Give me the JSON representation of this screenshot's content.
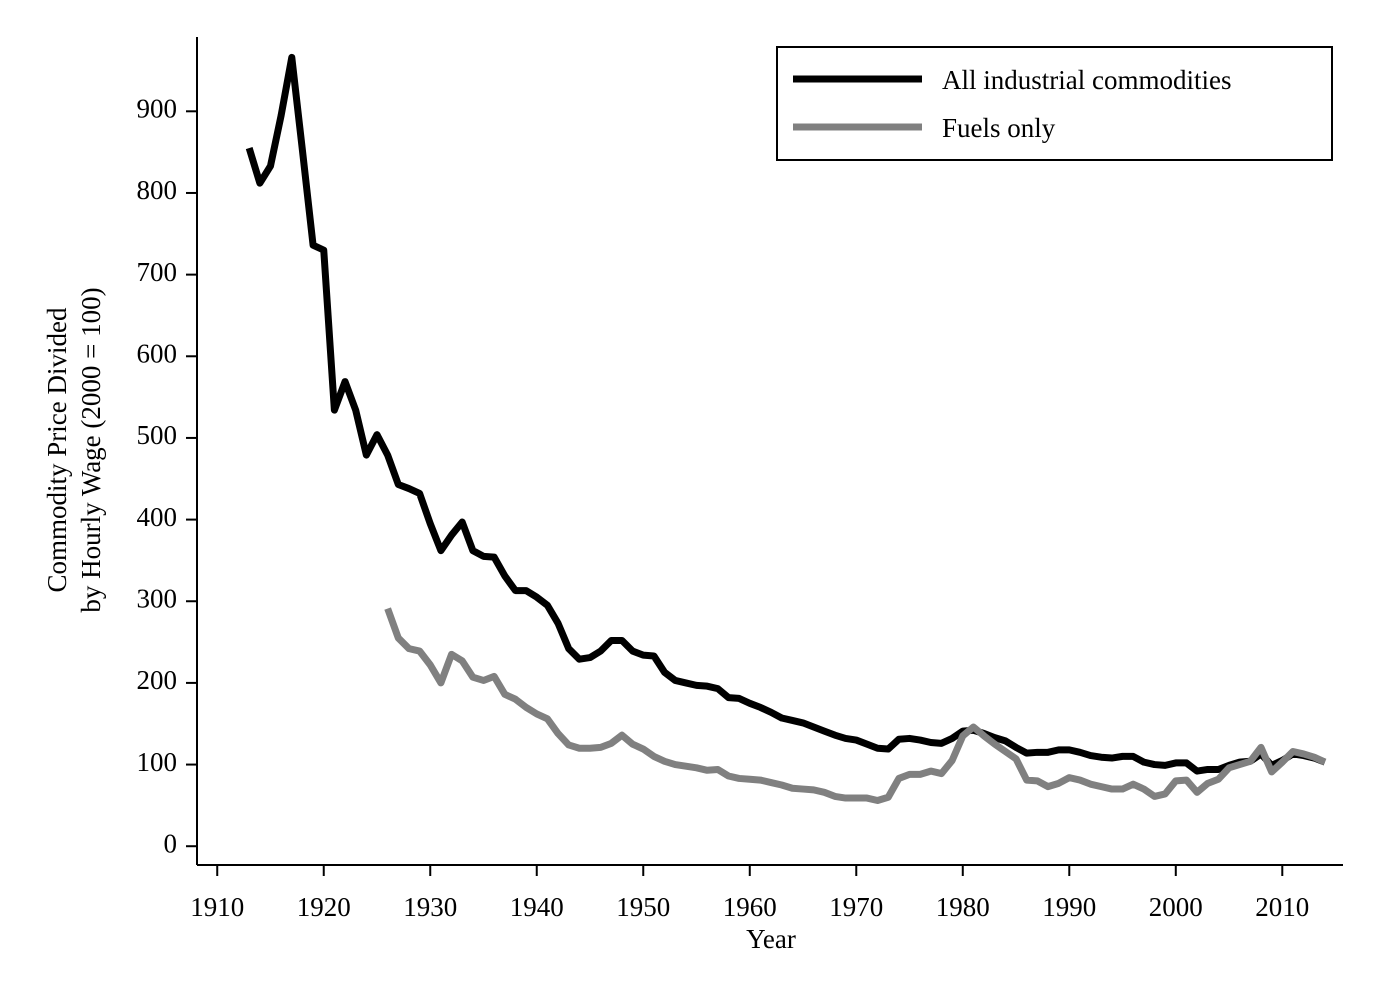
{
  "chart_data": {
    "type": "line",
    "y_label": [
      "Commodity Price Divided",
      "by Hourly Wage (2000 = 100)"
    ],
    "x_label": "Year",
    "x": [
      1913,
      1914,
      1915,
      1916,
      1917,
      1918,
      1919,
      1920,
      1921,
      1922,
      1923,
      1924,
      1925,
      1926,
      1927,
      1928,
      1929,
      1930,
      1931,
      1932,
      1933,
      1934,
      1935,
      1936,
      1937,
      1938,
      1939,
      1940,
      1941,
      1942,
      1943,
      1944,
      1945,
      1946,
      1947,
      1948,
      1949,
      1950,
      1951,
      1952,
      1953,
      1954,
      1955,
      1956,
      1957,
      1958,
      1959,
      1960,
      1961,
      1962,
      1963,
      1964,
      1965,
      1966,
      1967,
      1968,
      1969,
      1970,
      1971,
      1972,
      1973,
      1974,
      1975,
      1976,
      1977,
      1978,
      1979,
      1980,
      1981,
      1982,
      1983,
      1984,
      1985,
      1986,
      1987,
      1988,
      1989,
      1990,
      1991,
      1992,
      1993,
      1994,
      1995,
      1996,
      1997,
      1998,
      1999,
      2000,
      2001,
      2002,
      2003,
      2004,
      2005,
      2006,
      2007,
      2008,
      2009,
      2010,
      2011,
      2012,
      2013,
      2014
    ],
    "series": [
      {
        "name": "All industrial commodities",
        "color": "#000000",
        "values": [
          855,
          812,
          833,
          895,
          966,
          852,
          736,
          730,
          534,
          569,
          534,
          479,
          504,
          479,
          443,
          438,
          432,
          395,
          362,
          381,
          397,
          362,
          355,
          354,
          331,
          313,
          313,
          305,
          295,
          273,
          242,
          229,
          231,
          239,
          252,
          252,
          239,
          234,
          233,
          213,
          203,
          200,
          197,
          196,
          193,
          182,
          181,
          175,
          170,
          164,
          157,
          154,
          151,
          146,
          141,
          136,
          132,
          130,
          125,
          120,
          119,
          131,
          132,
          130,
          127,
          126,
          132,
          141,
          142,
          138,
          133,
          129,
          121,
          114,
          115,
          115,
          118,
          118,
          115,
          111,
          109,
          108,
          110,
          110,
          103,
          100,
          99,
          102,
          102,
          92,
          94,
          94,
          99,
          103,
          104,
          113,
          99,
          105,
          113,
          111,
          108,
          103
        ]
      },
      {
        "name": "Fuels only",
        "color": "#808080",
        "values": [
          null,
          null,
          null,
          null,
          null,
          null,
          null,
          null,
          null,
          null,
          null,
          null,
          null,
          291,
          255,
          242,
          239,
          222,
          200,
          235,
          227,
          207,
          203,
          208,
          186,
          180,
          170,
          162,
          156,
          138,
          124,
          120,
          120,
          121,
          126,
          136,
          125,
          119,
          110,
          104,
          100,
          98,
          96,
          93,
          94,
          86,
          83,
          82,
          81,
          78,
          75,
          71,
          70,
          69,
          66,
          61,
          59,
          59,
          59,
          56,
          60,
          83,
          88,
          88,
          92,
          89,
          105,
          135,
          146,
          135,
          125,
          116,
          107,
          81,
          80,
          73,
          77,
          84,
          81,
          76,
          73,
          70,
          70,
          76,
          70,
          61,
          64,
          80,
          81,
          66,
          77,
          82,
          96,
          100,
          104,
          121,
          91,
          103,
          116,
          113,
          109,
          103
        ]
      }
    ],
    "xlim": [
      1908.1,
      2015.7
    ],
    "xticks": [
      1910,
      1920,
      1930,
      1940,
      1950,
      1960,
      1970,
      1980,
      1990,
      2000,
      2010
    ],
    "ylim": [
      -23,
      991
    ],
    "yticks": [
      0,
      100,
      200,
      300,
      400,
      500,
      600,
      700,
      800,
      900
    ],
    "legend": "top-right",
    "grid": false
  }
}
